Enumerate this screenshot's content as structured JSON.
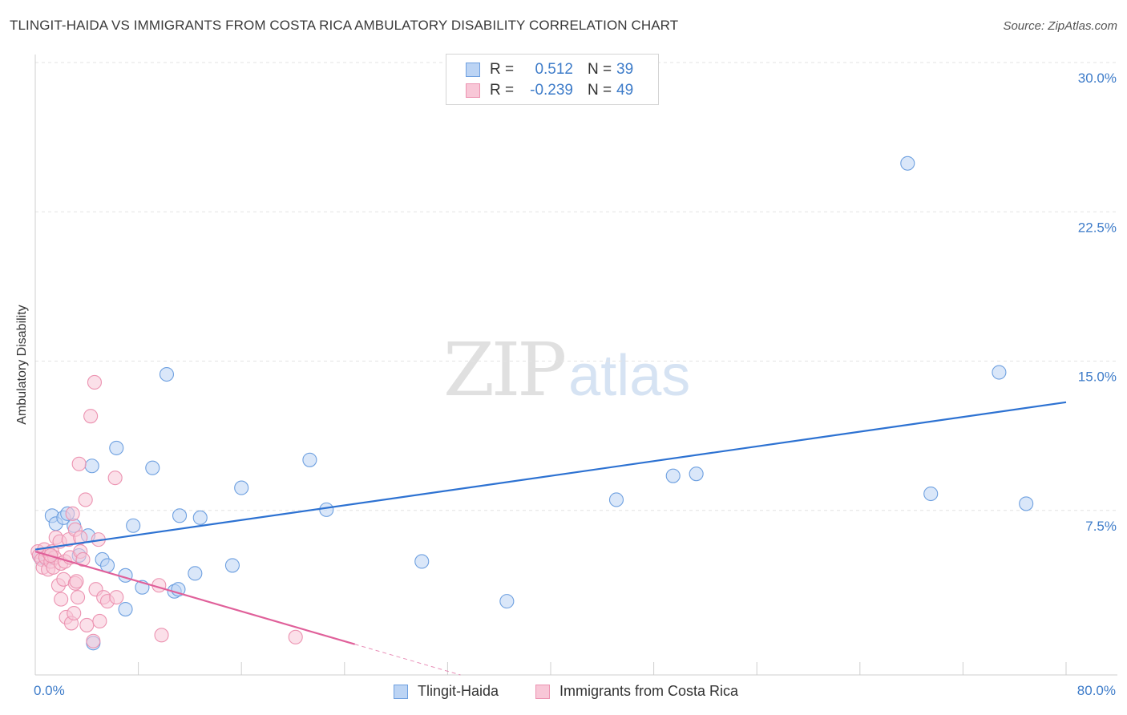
{
  "chart_data": {
    "type": "scatter",
    "title": "TLINGIT-HAIDA VS IMMIGRANTS FROM COSTA RICA AMBULATORY DISABILITY CORRELATION CHART",
    "source": "Source: ZipAtlas.com",
    "ylabel": "Ambulatory Disability",
    "xlabel": "",
    "xlim": [
      0,
      80
    ],
    "ylim": [
      0,
      30
    ],
    "x_tick_labels": {
      "min": "0.0%",
      "max": "80.0%"
    },
    "y_ticks": [
      {
        "value": 7.5,
        "label": "7.5%"
      },
      {
        "value": 15.0,
        "label": "15.0%"
      },
      {
        "value": 22.5,
        "label": "22.5%"
      },
      {
        "value": 30.0,
        "label": "30.0%"
      }
    ],
    "watermark": {
      "zip": "ZIP",
      "atlas": "atlas"
    },
    "series": [
      {
        "name": "Tlingit-Haida",
        "color": "#6ea0e0",
        "fill": "#bcd4f4",
        "line_color": "#2d72d2",
        "legend": {
          "r_label": "R =",
          "r_value": "0.512",
          "n_label": "N =",
          "n_value": "39"
        },
        "trend": {
          "x": [
            0,
            80
          ],
          "y": [
            6.3,
            13.7
          ],
          "dashed_from": null
        },
        "points": [
          [
            0.4,
            5.9
          ],
          [
            0.9,
            5.8
          ],
          [
            1.3,
            8.0
          ],
          [
            1.6,
            7.6
          ],
          [
            2.2,
            7.9
          ],
          [
            2.5,
            8.1
          ],
          [
            3.0,
            7.5
          ],
          [
            3.4,
            6.0
          ],
          [
            4.1,
            7.0
          ],
          [
            4.5,
            1.6
          ],
          [
            4.4,
            10.5
          ],
          [
            5.2,
            5.8
          ],
          [
            5.6,
            5.5
          ],
          [
            6.3,
            11.4
          ],
          [
            7.0,
            5.0
          ],
          [
            7.0,
            3.3
          ],
          [
            7.6,
            7.5
          ],
          [
            8.3,
            4.4
          ],
          [
            9.1,
            10.4
          ],
          [
            10.2,
            15.1
          ],
          [
            10.8,
            4.2
          ],
          [
            11.1,
            4.3
          ],
          [
            11.2,
            8.0
          ],
          [
            12.4,
            5.1
          ],
          [
            12.8,
            7.9
          ],
          [
            15.3,
            5.5
          ],
          [
            16.0,
            9.4
          ],
          [
            21.3,
            10.8
          ],
          [
            22.6,
            8.3
          ],
          [
            30.0,
            5.7
          ],
          [
            36.6,
            3.7
          ],
          [
            45.1,
            8.8
          ],
          [
            49.5,
            10.0
          ],
          [
            51.3,
            10.1
          ],
          [
            67.7,
            25.7
          ],
          [
            69.5,
            9.1
          ],
          [
            74.8,
            15.2
          ],
          [
            76.9,
            8.6
          ],
          [
            1.0,
            5.9
          ]
        ]
      },
      {
        "name": "Immigrants from Costa Rica",
        "color": "#ec93b1",
        "fill": "#f8c7d7",
        "line_color": "#e0609a",
        "legend": {
          "r_label": "R =",
          "r_value": "-0.239",
          "n_label": "N =",
          "n_value": "49"
        },
        "trend": {
          "x": [
            0,
            33
          ],
          "y": [
            6.2,
            0
          ],
          "dashed_from": 24.8
        },
        "points": [
          [
            0.2,
            6.2
          ],
          [
            0.3,
            6.0
          ],
          [
            0.5,
            5.8
          ],
          [
            0.6,
            5.4
          ],
          [
            0.7,
            6.3
          ],
          [
            0.8,
            5.9
          ],
          [
            1.0,
            5.3
          ],
          [
            1.1,
            6.1
          ],
          [
            1.2,
            5.7
          ],
          [
            1.3,
            6.2
          ],
          [
            1.4,
            5.4
          ],
          [
            1.5,
            5.9
          ],
          [
            1.6,
            6.9
          ],
          [
            1.8,
            4.5
          ],
          [
            1.9,
            6.7
          ],
          [
            2.0,
            5.6
          ],
          [
            2.0,
            3.8
          ],
          [
            2.2,
            4.8
          ],
          [
            2.3,
            5.7
          ],
          [
            2.4,
            2.9
          ],
          [
            2.6,
            6.8
          ],
          [
            2.7,
            5.9
          ],
          [
            2.8,
            2.6
          ],
          [
            2.9,
            8.1
          ],
          [
            3.0,
            3.1
          ],
          [
            3.1,
            7.3
          ],
          [
            3.1,
            4.6
          ],
          [
            3.2,
            4.7
          ],
          [
            3.3,
            3.9
          ],
          [
            3.4,
            10.6
          ],
          [
            3.5,
            6.9
          ],
          [
            3.5,
            6.2
          ],
          [
            3.7,
            5.8
          ],
          [
            3.9,
            8.8
          ],
          [
            4.0,
            2.5
          ],
          [
            4.3,
            13.0
          ],
          [
            4.5,
            1.7
          ],
          [
            4.6,
            14.7
          ],
          [
            4.7,
            4.3
          ],
          [
            4.9,
            6.8
          ],
          [
            5.0,
            2.7
          ],
          [
            5.3,
            3.9
          ],
          [
            5.6,
            3.7
          ],
          [
            6.2,
            9.9
          ],
          [
            6.3,
            3.9
          ],
          [
            9.6,
            4.5
          ],
          [
            9.8,
            2.0
          ],
          [
            20.2,
            1.9
          ],
          [
            1.2,
            6.0
          ]
        ]
      }
    ]
  }
}
